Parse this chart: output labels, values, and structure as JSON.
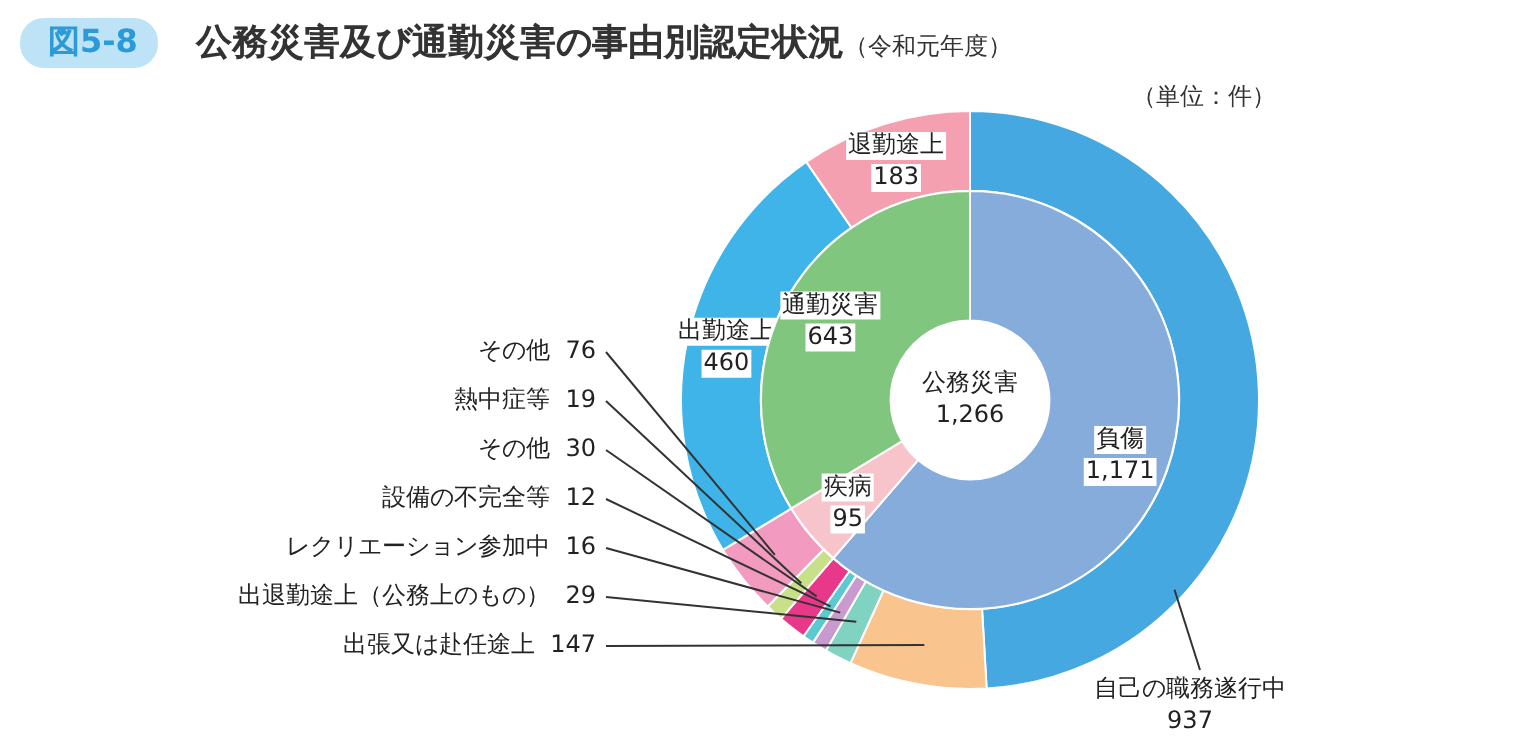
{
  "chart_data": [
    {
      "type": "donut",
      "title": "公務災害及び通勤災害の事由別認定状況",
      "subtitle": "（令和元年度）",
      "annotations": [
        "図5-8",
        "（単位：件）"
      ],
      "categories": [
        "自己の職務遂行中",
        "出張又は赴任途上",
        "出退勤途上（公務上のもの）",
        "レクリエーション参加中",
        "設備の不完全等",
        "その他",
        "熱中症等",
        "その他",
        "出勤途上",
        "退勤途上"
      ],
      "values": [
        937,
        147,
        29,
        16,
        12,
        30,
        19,
        76,
        460,
        183
      ],
      "value_labels": [
        "937",
        "147",
        "29",
        "16",
        "12",
        "30",
        "19",
        "76",
        "460",
        "183"
      ],
      "colors": [
        "#45a8e0",
        "#f9c48e",
        "#7fd3c0",
        "#c89ad0",
        "#5cc8d0",
        "#e8388a",
        "#c8e08a",
        "#f39ac0",
        "#3fb4e8",
        "#f4a0b0"
      ]
    },
    {
      "type": "donut",
      "annotations": [
        "公務災害\n1,266"
      ],
      "categories": [
        "負傷",
        "疾病",
        "通勤災害"
      ],
      "values": [
        1171,
        95,
        643
      ],
      "value_labels": [
        "1,171",
        "95",
        "643"
      ],
      "colors": [
        "#86acdc",
        "#f8c4cc",
        "#80c67e"
      ]
    }
  ]
}
